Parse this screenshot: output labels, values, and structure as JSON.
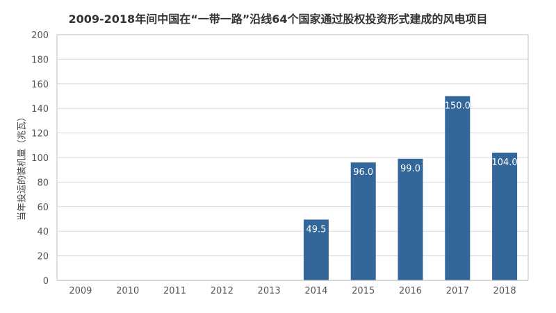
{
  "chart_data": {
    "type": "bar",
    "title": "2009-2018年间中国在“一带一路”沿线64个国家通过股权投资形式建成的风电项目",
    "xlabel": "",
    "ylabel": "当年投运的装机量（兆瓦）",
    "categories": [
      "2009",
      "2010",
      "2011",
      "2012",
      "2013",
      "2014",
      "2015",
      "2016",
      "2017",
      "2018"
    ],
    "values": [
      0,
      0,
      0,
      0,
      0,
      49.5,
      96.0,
      99.0,
      150.0,
      104.0
    ],
    "data_labels": [
      "",
      "",
      "",
      "",
      "",
      "49.5",
      "96.0",
      "99.0",
      "150.0",
      "104.0"
    ],
    "ylim": [
      0,
      200
    ],
    "yticks": [
      "0",
      "20",
      "40",
      "60",
      "80",
      "100",
      "120",
      "140",
      "160",
      "180",
      "200"
    ],
    "grid": true,
    "legend": "none",
    "colors": {
      "bar": "#336699",
      "grid": "#d9d9d9",
      "axis": "#bfbfbf"
    }
  }
}
